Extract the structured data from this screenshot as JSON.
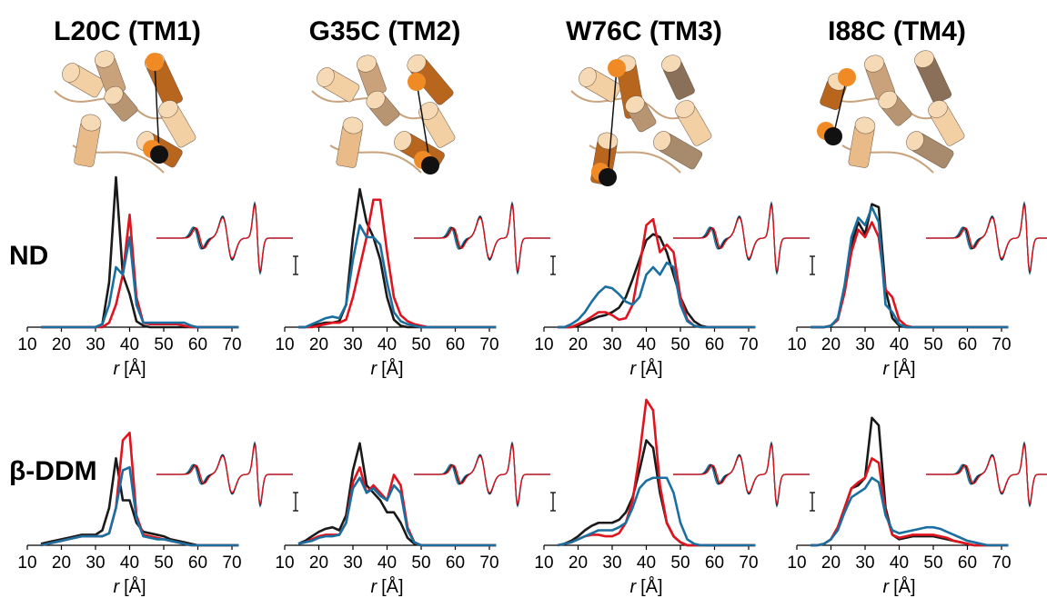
{
  "columns": [
    "L20C (TM1)",
    "G35C (TM2)",
    "W76C (TM3)",
    "I88C (TM4)"
  ],
  "rows": [
    "ND",
    "β-DDM"
  ],
  "chart_data": [
    {
      "type": "line",
      "xlabel_symbol": "r",
      "xlabel_unit": "[Å]",
      "xlim": [
        10,
        72
      ],
      "ylim": [
        0,
        1
      ],
      "xticks": [
        10,
        20,
        30,
        40,
        50,
        60,
        70
      ],
      "x": [
        14,
        16,
        18,
        20,
        22,
        24,
        26,
        28,
        30,
        32,
        34,
        36,
        38,
        40,
        42,
        44,
        46,
        48,
        50,
        52,
        54,
        56,
        58,
        60,
        62,
        64,
        66,
        68,
        70,
        72
      ],
      "series": [
        {
          "color": "#1a1a1a",
          "values": [
            0,
            0,
            0,
            0,
            0,
            0,
            0,
            0,
            0,
            0.02,
            0.3,
            1.0,
            0.35,
            0.22,
            0.04,
            0.01,
            0,
            0,
            0,
            0,
            0,
            0,
            0,
            0,
            0,
            0,
            0,
            0,
            0,
            0
          ]
        },
        {
          "color": "#e0141e",
          "values": [
            0,
            0,
            0,
            0,
            0,
            0,
            0,
            0,
            0,
            0,
            0.03,
            0.15,
            0.35,
            0.75,
            0.2,
            0.03,
            0.02,
            0.02,
            0.02,
            0.02,
            0.02,
            0.01,
            0,
            0,
            0,
            0,
            0,
            0,
            0,
            0
          ]
        },
        {
          "color": "#1a6fa0",
          "values": [
            0,
            0,
            0,
            0,
            0,
            0,
            0,
            0,
            0,
            0.02,
            0.15,
            0.4,
            0.35,
            0.6,
            0.15,
            0.03,
            0.03,
            0.03,
            0.03,
            0.03,
            0.03,
            0.03,
            0.01,
            0,
            0,
            0,
            0,
            0,
            0,
            0
          ]
        }
      ]
    },
    {
      "type": "line",
      "xlabel_symbol": "r",
      "xlabel_unit": "[Å]",
      "xlim": [
        10,
        72
      ],
      "ylim": [
        0,
        1
      ],
      "xticks": [
        10,
        20,
        30,
        40,
        50,
        60,
        70
      ],
      "x": [
        14,
        16,
        18,
        20,
        22,
        24,
        26,
        28,
        30,
        32,
        34,
        36,
        38,
        40,
        42,
        44,
        46,
        48,
        50,
        52,
        54,
        56,
        58,
        60,
        62,
        64,
        66,
        68,
        70,
        72
      ],
      "series": [
        {
          "color": "#1a1a1a",
          "values": [
            0,
            0,
            0.01,
            0.02,
            0.03,
            0.03,
            0.04,
            0.15,
            0.6,
            0.92,
            0.7,
            0.6,
            0.45,
            0.2,
            0.05,
            0.01,
            0,
            0,
            0,
            0,
            0,
            0,
            0,
            0,
            0,
            0,
            0,
            0,
            0,
            0
          ]
        },
        {
          "color": "#e0141e",
          "values": [
            0,
            0,
            0,
            0.01,
            0.02,
            0.03,
            0.03,
            0.05,
            0.2,
            0.4,
            0.6,
            0.85,
            0.85,
            0.5,
            0.2,
            0.08,
            0.04,
            0.02,
            0.01,
            0,
            0,
            0,
            0,
            0,
            0,
            0,
            0,
            0,
            0,
            0
          ]
        },
        {
          "color": "#1a6fa0",
          "values": [
            0,
            0,
            0.02,
            0.04,
            0.06,
            0.07,
            0.06,
            0.15,
            0.45,
            0.68,
            0.6,
            0.6,
            0.55,
            0.3,
            0.1,
            0.04,
            0.02,
            0.01,
            0,
            0,
            0,
            0,
            0,
            0,
            0,
            0,
            0,
            0,
            0,
            0
          ]
        }
      ]
    },
    {
      "type": "line",
      "xlabel_symbol": "r",
      "xlabel_unit": "[Å]",
      "xlim": [
        10,
        72
      ],
      "ylim": [
        0,
        1
      ],
      "xticks": [
        10,
        20,
        30,
        40,
        50,
        60,
        70
      ],
      "x": [
        14,
        16,
        18,
        20,
        22,
        24,
        26,
        28,
        30,
        32,
        34,
        36,
        38,
        40,
        42,
        44,
        46,
        48,
        50,
        52,
        54,
        56,
        58,
        60,
        62,
        64,
        66,
        68,
        70,
        72
      ],
      "series": [
        {
          "color": "#1a1a1a",
          "values": [
            0,
            0,
            0,
            0.01,
            0.03,
            0.05,
            0.07,
            0.08,
            0.1,
            0.13,
            0.2,
            0.32,
            0.45,
            0.58,
            0.62,
            0.6,
            0.5,
            0.35,
            0.2,
            0.1,
            0.04,
            0.01,
            0,
            0,
            0,
            0,
            0,
            0,
            0,
            0
          ]
        },
        {
          "color": "#e0141e",
          "values": [
            0,
            0,
            0,
            0.02,
            0.04,
            0.07,
            0.1,
            0.1,
            0.08,
            0.05,
            0.06,
            0.15,
            0.4,
            0.68,
            0.72,
            0.5,
            0.55,
            0.5,
            0.2,
            0.05,
            0.01,
            0,
            0,
            0,
            0,
            0,
            0,
            0,
            0,
            0
          ]
        },
        {
          "color": "#1a6fa0",
          "values": [
            0,
            0,
            0.02,
            0.05,
            0.1,
            0.17,
            0.23,
            0.27,
            0.26,
            0.22,
            0.17,
            0.15,
            0.2,
            0.35,
            0.4,
            0.35,
            0.43,
            0.4,
            0.15,
            0.04,
            0.01,
            0,
            0,
            0,
            0,
            0,
            0,
            0,
            0,
            0
          ]
        }
      ]
    },
    {
      "type": "line",
      "xlabel_symbol": "r",
      "xlabel_unit": "[Å]",
      "xlim": [
        10,
        72
      ],
      "ylim": [
        0,
        1
      ],
      "xticks": [
        10,
        20,
        30,
        40,
        50,
        60,
        70
      ],
      "x": [
        14,
        16,
        18,
        20,
        22,
        24,
        26,
        28,
        30,
        32,
        34,
        36,
        38,
        40,
        42,
        44,
        46,
        48,
        50,
        52,
        54,
        56,
        58,
        60,
        62,
        64,
        66,
        68,
        70,
        72
      ],
      "series": [
        {
          "color": "#1a1a1a",
          "values": [
            0,
            0,
            0,
            0.01,
            0.05,
            0.25,
            0.55,
            0.7,
            0.62,
            0.82,
            0.8,
            0.25,
            0.06,
            0.01,
            0,
            0,
            0,
            0,
            0,
            0,
            0,
            0,
            0,
            0,
            0,
            0,
            0,
            0,
            0,
            0
          ]
        },
        {
          "color": "#e0141e",
          "values": [
            0,
            0,
            0,
            0.01,
            0.05,
            0.23,
            0.5,
            0.65,
            0.6,
            0.7,
            0.6,
            0.25,
            0.2,
            0.05,
            0.01,
            0,
            0,
            0,
            0,
            0,
            0,
            0,
            0,
            0,
            0,
            0,
            0,
            0,
            0,
            0
          ]
        },
        {
          "color": "#1a6fa0",
          "values": [
            0,
            0,
            0,
            0.01,
            0.06,
            0.28,
            0.6,
            0.73,
            0.68,
            0.8,
            0.7,
            0.15,
            0.1,
            0.02,
            0,
            0,
            0,
            0,
            0,
            0,
            0,
            0,
            0,
            0,
            0,
            0,
            0,
            0,
            0,
            0
          ]
        }
      ]
    },
    {
      "type": "line",
      "xlabel_symbol": "r",
      "xlabel_unit": "[Å]",
      "xlim": [
        10,
        72
      ],
      "ylim": [
        0,
        1
      ],
      "xticks": [
        10,
        20,
        30,
        40,
        50,
        60,
        70
      ],
      "x": [
        14,
        16,
        18,
        20,
        22,
        24,
        26,
        28,
        30,
        32,
        34,
        36,
        38,
        40,
        42,
        44,
        46,
        48,
        50,
        52,
        54,
        56,
        58,
        60,
        62,
        64,
        66,
        68,
        70,
        72
      ],
      "series": [
        {
          "color": "#1a1a1a",
          "values": [
            0.01,
            0.02,
            0.03,
            0.04,
            0.05,
            0.06,
            0.07,
            0.07,
            0.07,
            0.1,
            0.25,
            0.58,
            0.3,
            0.3,
            0.15,
            0.09,
            0.08,
            0.07,
            0.06,
            0.04,
            0.03,
            0.02,
            0.01,
            0,
            0,
            0,
            0,
            0,
            0,
            0
          ]
        },
        {
          "color": "#e0141e",
          "values": [
            0,
            0.01,
            0.02,
            0.03,
            0.04,
            0.05,
            0.06,
            0.06,
            0.06,
            0.06,
            0.08,
            0.25,
            0.7,
            0.75,
            0.2,
            0.07,
            0.06,
            0.05,
            0.04,
            0.03,
            0.02,
            0.01,
            0,
            0,
            0,
            0,
            0,
            0,
            0,
            0
          ]
        },
        {
          "color": "#1a6fa0",
          "values": [
            0,
            0.01,
            0.02,
            0.03,
            0.04,
            0.05,
            0.06,
            0.06,
            0.06,
            0.06,
            0.08,
            0.25,
            0.5,
            0.52,
            0.18,
            0.06,
            0.05,
            0.04,
            0.04,
            0.03,
            0.02,
            0.01,
            0,
            0,
            0,
            0,
            0,
            0,
            0,
            0
          ]
        }
      ]
    },
    {
      "type": "line",
      "xlabel_symbol": "r",
      "xlabel_unit": "[Å]",
      "xlim": [
        10,
        72
      ],
      "ylim": [
        0,
        1
      ],
      "xticks": [
        10,
        20,
        30,
        40,
        50,
        60,
        70
      ],
      "x": [
        14,
        16,
        18,
        20,
        22,
        24,
        26,
        28,
        30,
        32,
        34,
        36,
        38,
        40,
        42,
        44,
        46,
        48,
        50,
        52,
        54,
        56,
        58,
        60,
        62,
        64,
        66,
        68,
        70,
        72
      ],
      "series": [
        {
          "color": "#1a1a1a",
          "values": [
            0.01,
            0.03,
            0.06,
            0.09,
            0.11,
            0.12,
            0.1,
            0.2,
            0.5,
            0.68,
            0.4,
            0.35,
            0.3,
            0.22,
            0.22,
            0.15,
            0.05,
            0.01,
            0,
            0,
            0,
            0,
            0,
            0,
            0,
            0,
            0,
            0,
            0,
            0
          ]
        },
        {
          "color": "#e0141e",
          "values": [
            0.01,
            0.02,
            0.04,
            0.06,
            0.07,
            0.07,
            0.07,
            0.15,
            0.42,
            0.52,
            0.35,
            0.4,
            0.35,
            0.3,
            0.47,
            0.4,
            0.12,
            0.02,
            0,
            0,
            0,
            0,
            0,
            0,
            0,
            0,
            0,
            0,
            0,
            0
          ]
        },
        {
          "color": "#1a6fa0",
          "values": [
            0.01,
            0.02,
            0.03,
            0.05,
            0.06,
            0.06,
            0.07,
            0.15,
            0.38,
            0.45,
            0.35,
            0.38,
            0.33,
            0.3,
            0.4,
            0.35,
            0.1,
            0.02,
            0,
            0,
            0,
            0,
            0,
            0,
            0,
            0,
            0,
            0,
            0,
            0
          ]
        }
      ]
    },
    {
      "type": "line",
      "xlabel_symbol": "r",
      "xlabel_unit": "[Å]",
      "xlim": [
        10,
        72
      ],
      "ylim": [
        0,
        1
      ],
      "xticks": [
        10,
        20,
        30,
        40,
        50,
        60,
        70
      ],
      "x": [
        14,
        16,
        18,
        20,
        22,
        24,
        26,
        28,
        30,
        32,
        34,
        36,
        38,
        40,
        42,
        44,
        46,
        48,
        50,
        52,
        54,
        56,
        58,
        60,
        62,
        64,
        66,
        68,
        70,
        72
      ],
      "series": [
        {
          "color": "#1a1a1a",
          "values": [
            0,
            0.01,
            0.03,
            0.06,
            0.1,
            0.13,
            0.15,
            0.15,
            0.15,
            0.17,
            0.22,
            0.32,
            0.5,
            0.7,
            0.65,
            0.35,
            0.15,
            0.06,
            0.02,
            0,
            0,
            0,
            0,
            0,
            0,
            0,
            0,
            0,
            0,
            0
          ]
        },
        {
          "color": "#e0141e",
          "values": [
            0,
            0.01,
            0.02,
            0.04,
            0.06,
            0.07,
            0.07,
            0.06,
            0.06,
            0.08,
            0.15,
            0.3,
            0.6,
            0.97,
            0.9,
            0.4,
            0.15,
            0.06,
            0.02,
            0,
            0,
            0,
            0,
            0,
            0,
            0,
            0,
            0,
            0,
            0
          ]
        },
        {
          "color": "#1a6fa0",
          "values": [
            0,
            0.01,
            0.02,
            0.04,
            0.06,
            0.08,
            0.1,
            0.1,
            0.1,
            0.12,
            0.15,
            0.25,
            0.38,
            0.43,
            0.45,
            0.45,
            0.45,
            0.35,
            0.15,
            0.04,
            0.01,
            0,
            0,
            0,
            0,
            0,
            0,
            0,
            0,
            0
          ]
        }
      ]
    },
    {
      "type": "line",
      "xlabel_symbol": "r",
      "xlabel_unit": "[Å]",
      "xlim": [
        10,
        72
      ],
      "ylim": [
        0,
        1
      ],
      "xticks": [
        10,
        20,
        30,
        40,
        50,
        60,
        70
      ],
      "x": [
        14,
        16,
        18,
        20,
        22,
        24,
        26,
        28,
        30,
        32,
        34,
        36,
        38,
        40,
        42,
        44,
        46,
        48,
        50,
        52,
        54,
        56,
        58,
        60,
        62,
        64,
        66,
        68,
        70,
        72
      ],
      "series": [
        {
          "color": "#1a1a1a",
          "values": [
            0,
            0,
            0.01,
            0.04,
            0.12,
            0.25,
            0.38,
            0.4,
            0.45,
            0.85,
            0.8,
            0.25,
            0.07,
            0.04,
            0.05,
            0.06,
            0.06,
            0.06,
            0.06,
            0.05,
            0.04,
            0.03,
            0.02,
            0.01,
            0,
            0,
            0,
            0,
            0,
            0
          ]
        },
        {
          "color": "#e0141e",
          "values": [
            0,
            0,
            0.01,
            0.04,
            0.12,
            0.25,
            0.38,
            0.42,
            0.45,
            0.58,
            0.55,
            0.22,
            0.07,
            0.05,
            0.06,
            0.07,
            0.07,
            0.07,
            0.07,
            0.06,
            0.05,
            0.03,
            0.02,
            0.01,
            0,
            0,
            0,
            0,
            0,
            0
          ]
        },
        {
          "color": "#1a6fa0",
          "values": [
            0,
            0,
            0.01,
            0.04,
            0.1,
            0.22,
            0.32,
            0.35,
            0.38,
            0.45,
            0.42,
            0.2,
            0.1,
            0.08,
            0.09,
            0.1,
            0.11,
            0.12,
            0.12,
            0.11,
            0.09,
            0.07,
            0.05,
            0.03,
            0.02,
            0.01,
            0,
            0,
            0,
            0
          ]
        }
      ]
    }
  ]
}
